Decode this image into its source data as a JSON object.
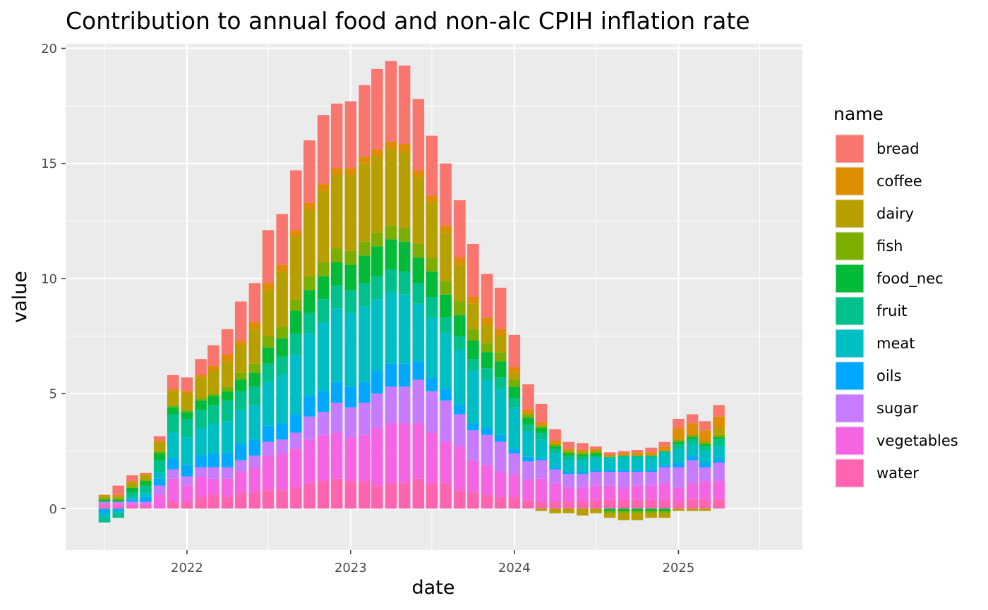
{
  "chart_data": {
    "type": "bar",
    "stacked": true,
    "title": "Contribution to annual food and non-alc CPIH inflation rate",
    "xlabel": "date",
    "ylabel": "value",
    "ylim": [
      -1.8,
      20.2
    ],
    "yticks": [
      0,
      5,
      10,
      15,
      20
    ],
    "xticks": [
      "2022",
      "2023",
      "2024",
      "2025"
    ],
    "grid": true,
    "legend_title": "name",
    "legend_position": "right",
    "categories": [
      "2021-07",
      "2021-08",
      "2021-09",
      "2021-10",
      "2021-11",
      "2021-12",
      "2022-01",
      "2022-02",
      "2022-03",
      "2022-04",
      "2022-05",
      "2022-06",
      "2022-07",
      "2022-08",
      "2022-09",
      "2022-10",
      "2022-11",
      "2022-12",
      "2023-01",
      "2023-02",
      "2023-03",
      "2023-04",
      "2023-05",
      "2023-06",
      "2023-07",
      "2023-08",
      "2023-09",
      "2023-10",
      "2023-11",
      "2023-12",
      "2024-01",
      "2024-02",
      "2024-03",
      "2024-04",
      "2024-05",
      "2024-06",
      "2024-07",
      "2024-08",
      "2024-09",
      "2024-10",
      "2024-11",
      "2024-12",
      "2025-01",
      "2025-02",
      "2025-03",
      "2025-04"
    ],
    "series": [
      {
        "name": "bread",
        "color": "#F8766D",
        "values": [
          0,
          0.4,
          0.25,
          0.05,
          0.2,
          0.6,
          0.6,
          0.7,
          0.9,
          1.1,
          1.7,
          1.7,
          2.3,
          2.2,
          2.6,
          2.7,
          3.0,
          2.8,
          2.9,
          3.1,
          3.5,
          3.5,
          3.4,
          3.1,
          2.6,
          2.7,
          2.5,
          2.3,
          1.9,
          1.8,
          1.4,
          1.1,
          0.8,
          0.5,
          0.3,
          0.3,
          0.1,
          0.1,
          0.1,
          0.1,
          0.2,
          0.2,
          0.4,
          0.4,
          0.4,
          0.5
        ]
      },
      {
        "name": "coffee",
        "color": "#DE8C00",
        "values": [
          0.05,
          0.05,
          0.05,
          0.05,
          0.05,
          0.1,
          0.1,
          0.1,
          0.2,
          0.3,
          0.2,
          0.3,
          0.3,
          0.3,
          0.3,
          0.3,
          0.3,
          0.3,
          0.3,
          0.3,
          0.3,
          0.35,
          0.35,
          0.3,
          0.3,
          0.3,
          0.3,
          0.3,
          0.3,
          0.3,
          0.25,
          0.2,
          0.15,
          0.15,
          0.1,
          0.1,
          0.1,
          0.1,
          0.1,
          0.15,
          0.15,
          0.2,
          0.5,
          0.5,
          0.5,
          0.5
        ]
      },
      {
        "name": "dairy",
        "color": "#B79F00",
        "values": [
          0.1,
          0.1,
          0.2,
          0.2,
          0.4,
          0.6,
          0.7,
          0.9,
          1.0,
          1.1,
          1.2,
          1.5,
          2.0,
          2.4,
          2.7,
          2.9,
          3.1,
          3.2,
          3.3,
          3.4,
          3.3,
          3.3,
          3.3,
          2.9,
          2.4,
          2.1,
          1.6,
          1.1,
          0.8,
          0.7,
          0.3,
          0.0,
          -0.1,
          -0.2,
          -0.2,
          -0.3,
          -0.2,
          -0.2,
          -0.3,
          -0.3,
          -0.2,
          -0.2,
          -0.1,
          -0.1,
          -0.1,
          0.3
        ]
      },
      {
        "name": "fish",
        "color": "#7CAE00",
        "values": [
          0.05,
          0.05,
          0.05,
          0.05,
          0.1,
          0.1,
          0.1,
          0.1,
          0.1,
          0.2,
          0.3,
          0.4,
          0.5,
          0.5,
          0.5,
          0.6,
          0.6,
          0.6,
          0.6,
          0.6,
          0.6,
          0.6,
          0.6,
          0.6,
          0.6,
          0.6,
          0.6,
          0.5,
          0.4,
          0.4,
          0.3,
          0.15,
          0.1,
          0.1,
          0.1,
          0.1,
          0.1,
          -0.1,
          -0.1,
          -0.1,
          -0.1,
          -0.1,
          0.1,
          0.1,
          0.1,
          0.1
        ]
      },
      {
        "name": "food_nec",
        "color": "#00BA38",
        "values": [
          0.1,
          0.1,
          0.2,
          0.2,
          0.3,
          0.3,
          0.3,
          0.4,
          0.4,
          0.4,
          0.5,
          0.6,
          0.7,
          0.8,
          1.0,
          1.0,
          1.0,
          1.0,
          1.1,
          1.2,
          1.3,
          1.3,
          1.3,
          1.1,
          1.1,
          1.0,
          0.9,
          0.8,
          0.7,
          0.7,
          0.5,
          0.3,
          0.2,
          0.1,
          0.1,
          0.1,
          0.1,
          -0.1,
          -0.1,
          -0.1,
          -0.1,
          -0.1,
          0.1,
          0.1,
          0.1,
          0.1
        ]
      },
      {
        "name": "fruit",
        "color": "#00C08B",
        "values": [
          -0.2,
          -0.2,
          0.2,
          0.3,
          0.5,
          0.8,
          0.8,
          0.8,
          0.8,
          0.9,
          0.8,
          0.8,
          0.8,
          0.8,
          0.9,
          0.9,
          1.0,
          1.0,
          1.0,
          1.0,
          1.0,
          1.0,
          1.0,
          0.9,
          0.9,
          0.7,
          0.6,
          0.5,
          0.5,
          0.5,
          0.4,
          0.3,
          0.3,
          0.2,
          0.2,
          0.15,
          0.1,
          0.05,
          0.1,
          0.1,
          0.1,
          0.1,
          0.2,
          0.2,
          0.2,
          0.3
        ]
      },
      {
        "name": "meat",
        "color": "#00BFC4",
        "values": [
          -0.2,
          -0.1,
          0.1,
          0.2,
          0.3,
          1.1,
          1.2,
          1.2,
          1.3,
          1.4,
          1.5,
          1.5,
          1.9,
          2.1,
          2.6,
          2.7,
          3.0,
          3.2,
          3.2,
          3.3,
          3.1,
          3.1,
          3.0,
          2.5,
          2.6,
          2.4,
          2.4,
          2.3,
          2.1,
          2.0,
          1.8,
          1.1,
          0.8,
          0.6,
          0.5,
          0.5,
          0.5,
          0.5,
          0.5,
          0.5,
          0.5,
          0.5,
          0.6,
          0.5,
          0.5,
          0.5
        ]
      },
      {
        "name": "oils",
        "color": "#00A9FF",
        "values": [
          -0.2,
          -0.1,
          0.1,
          0.2,
          0.3,
          0.5,
          0.5,
          0.5,
          0.6,
          0.6,
          0.7,
          0.7,
          0.7,
          0.7,
          0.8,
          0.9,
          0.9,
          0.9,
          0.9,
          0.9,
          1.0,
          1.0,
          1.0,
          0.8,
          0.6,
          0.5,
          0.4,
          0.3,
          0.3,
          0.3,
          0.2,
          0.2,
          0.1,
          0.1,
          0.1,
          0.1,
          0.1,
          0.1,
          0.1,
          0.1,
          0.1,
          0.1,
          0.2,
          0.2,
          0.2,
          0.2
        ]
      },
      {
        "name": "sugar",
        "color": "#C77CFF",
        "values": [
          0.1,
          0.1,
          0.1,
          0.1,
          0.4,
          0.4,
          0.4,
          0.4,
          0.5,
          0.5,
          0.5,
          0.5,
          0.6,
          0.6,
          0.7,
          1.0,
          1.0,
          1.3,
          1.3,
          1.4,
          1.5,
          1.6,
          1.6,
          1.9,
          1.8,
          1.8,
          1.4,
          1.3,
          1.3,
          1.3,
          0.9,
          0.8,
          0.8,
          0.6,
          0.6,
          0.6,
          0.6,
          0.6,
          0.7,
          0.6,
          0.6,
          0.7,
          0.9,
          1.0,
          0.6,
          0.8
        ]
      },
      {
        "name": "vegetables",
        "color": "#F564E3",
        "values": [
          0.1,
          0.1,
          0.1,
          0.1,
          0.6,
          1.0,
          0.7,
          0.9,
          0.7,
          0.8,
          0.9,
          1.1,
          1.5,
          1.6,
          1.7,
          1.9,
          2.0,
          2.0,
          1.9,
          2.0,
          2.5,
          2.6,
          2.6,
          2.4,
          2.2,
          1.8,
          1.9,
          1.4,
          1.3,
          1.1,
          1.0,
          0.9,
          1.0,
          0.8,
          0.6,
          0.6,
          0.6,
          0.6,
          0.5,
          0.6,
          0.6,
          0.7,
          0.6,
          0.7,
          0.8,
          0.8
        ]
      },
      {
        "name": "water",
        "color": "#FF64B0",
        "values": [
          0.1,
          0.1,
          0.1,
          0.1,
          0.0,
          0.3,
          0.3,
          0.5,
          0.6,
          0.5,
          0.7,
          0.7,
          0.8,
          0.8,
          0.9,
          1.1,
          1.2,
          1.3,
          1.2,
          1.2,
          1.0,
          1.1,
          1.1,
          1.3,
          1.1,
          1.1,
          0.8,
          0.7,
          0.6,
          0.5,
          0.5,
          0.35,
          0.3,
          0.3,
          0.3,
          0.3,
          0.4,
          0.4,
          0.4,
          0.4,
          0.4,
          0.4,
          0.3,
          0.4,
          0.4,
          0.4
        ]
      }
    ]
  }
}
